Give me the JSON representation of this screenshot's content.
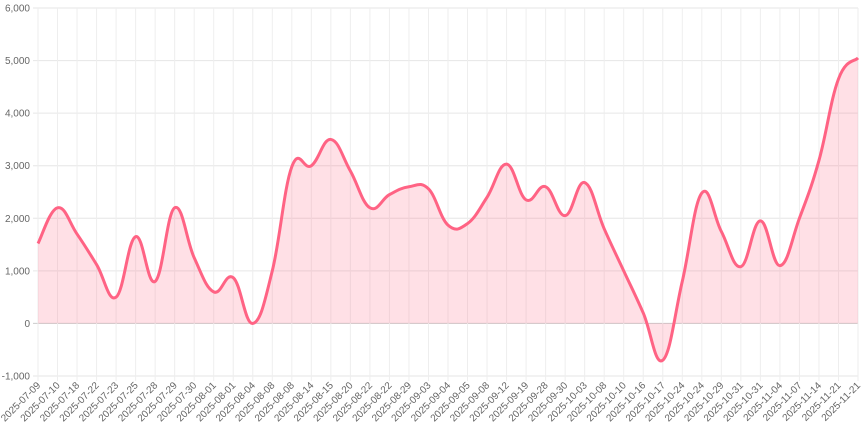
{
  "chart_data": {
    "type": "line",
    "categories": [
      "2025-07-09",
      "2025-07-10",
      "2025-07-18",
      "2025-07-22",
      "2025-07-23",
      "2025-07-25",
      "2025-07-28",
      "2025-07-29",
      "2025-07-30",
      "2025-08-01",
      "2025-08-01",
      "2025-08-04",
      "2025-08-08",
      "2025-08-08",
      "2025-08-14",
      "2025-08-15",
      "2025-08-20",
      "2025-08-22",
      "2025-08-22",
      "2025-08-29",
      "2025-09-03",
      "2025-09-04",
      "2025-09-05",
      "2025-09-08",
      "2025-09-12",
      "2025-09-19",
      "2025-09-28",
      "2025-09-30",
      "2025-10-03",
      "2025-10-08",
      "2025-10-10",
      "2025-10-16",
      "2025-10-17",
      "2025-10-24",
      "2025-10-24",
      "2025-10-29",
      "2025-10-31",
      "2025-10-31",
      "2025-11-04",
      "2025-11-07",
      "2025-11-14",
      "2025-11-21",
      "2025-11-21"
    ],
    "values": [
      1520,
      2200,
      1700,
      1120,
      500,
      1650,
      800,
      2200,
      1250,
      600,
      870,
      0,
      1000,
      2980,
      3000,
      3500,
      2900,
      2200,
      2450,
      2600,
      2560,
      1870,
      1900,
      2400,
      3030,
      2350,
      2600,
      2050,
      2680,
      1800,
      1000,
      200,
      -700,
      800,
      2480,
      1750,
      1080,
      1950,
      1100,
      2000,
      3100,
      4650,
      5050
    ],
    "color": "#ff6384",
    "fill": "rgba(255,99,132,0.2)",
    "ylim": [
      -1000,
      6000
    ],
    "yticks": [
      {
        "value": -1000,
        "label": "-1,000"
      },
      0,
      {
        "value": 1000,
        "label": "1,000"
      },
      {
        "value": 2000,
        "label": "2,000"
      },
      {
        "value": 3000,
        "label": "3,000"
      },
      {
        "value": 4000,
        "label": "4,000"
      },
      {
        "value": 5000,
        "label": "5,000"
      },
      {
        "value": 6000,
        "label": "6,000"
      }
    ],
    "grid": true
  }
}
